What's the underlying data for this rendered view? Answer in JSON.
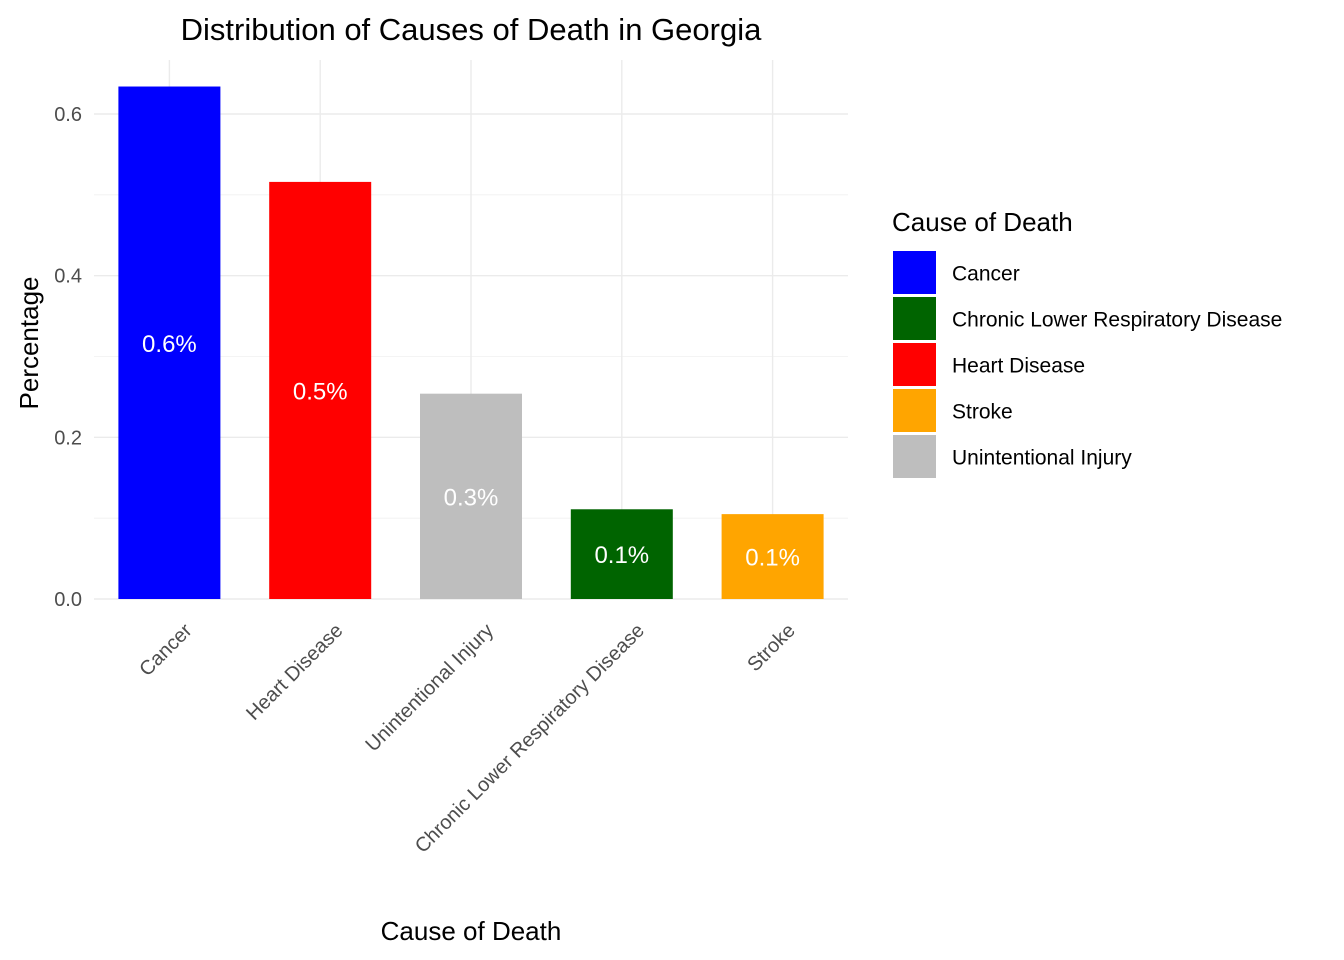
{
  "chart_data": {
    "type": "bar",
    "title": "Distribution of Causes of Death in Georgia",
    "xlabel": "Cause of Death",
    "ylabel": "Percentage",
    "ylim": [
      0,
      0.66
    ],
    "yticks": [
      0.0,
      0.2,
      0.4,
      0.6
    ],
    "ytick_labels": [
      "0.0",
      "0.2",
      "0.4",
      "0.6"
    ],
    "grid": true,
    "legend_position": "right",
    "categories": [
      "Cancer",
      "Heart Disease",
      "Unintentional Injury",
      "Chronic Lower Respiratory Disease",
      "Stroke"
    ],
    "values": [
      0.634,
      0.516,
      0.254,
      0.111,
      0.105
    ],
    "data_labels": [
      "0.6%",
      "0.5%",
      "0.3%",
      "0.1%",
      "0.1%"
    ],
    "colors": {
      "Cancer": "#0000ff",
      "Heart Disease": "#ff0000",
      "Unintentional Injury": "#bebebe",
      "Chronic Lower Respiratory Disease": "#006400",
      "Stroke": "#ffa500"
    },
    "legend": {
      "title": "Cause of Death",
      "entries": [
        "Cancer",
        "Chronic Lower Respiratory Disease",
        "Heart Disease",
        "Stroke",
        "Unintentional Injury"
      ]
    }
  }
}
